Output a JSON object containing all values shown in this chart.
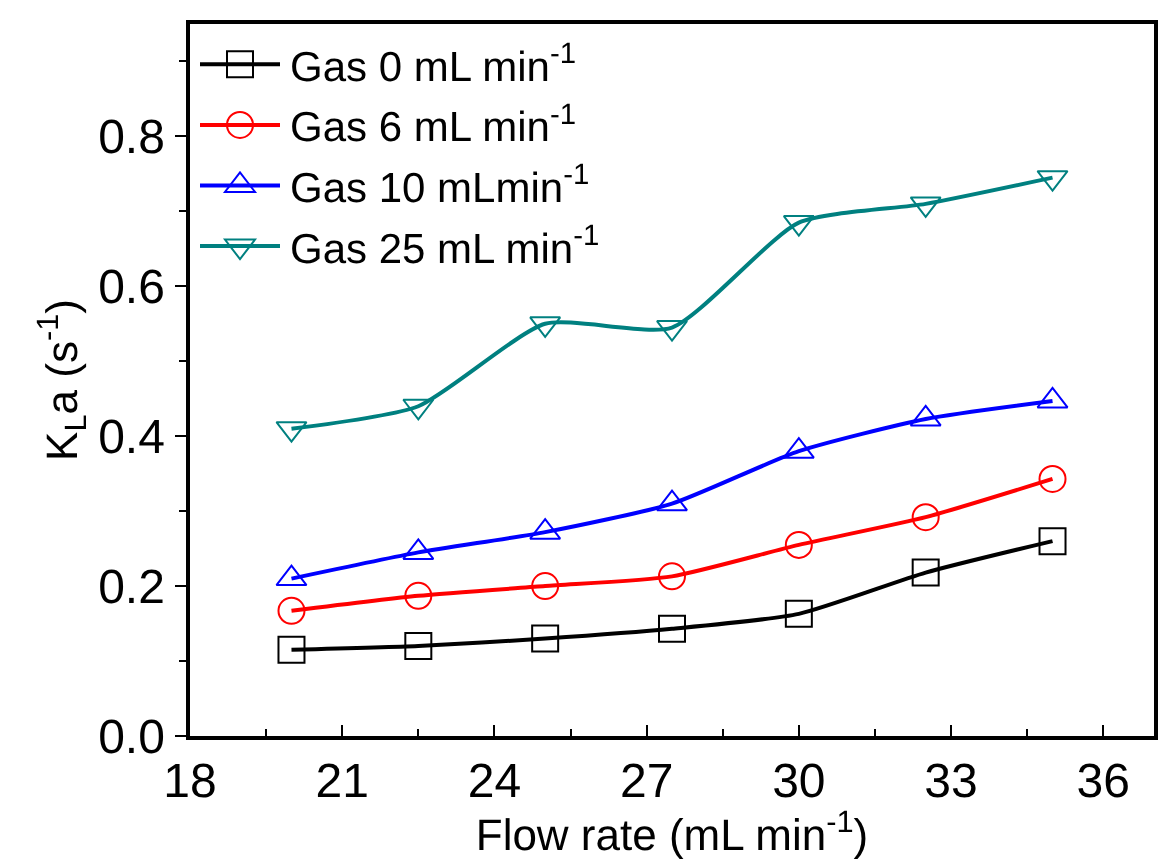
{
  "chart_data": {
    "type": "line",
    "xlabel": "Flow rate (mL min$^{-1}$)",
    "ylabel": "K$_{L}$a (s$^{-1}$)",
    "x": [
      20,
      22.5,
      25,
      27.5,
      30,
      32.5,
      35
    ],
    "xlim": [
      18,
      37
    ],
    "xticks": [
      18,
      21,
      24,
      27,
      30,
      33,
      36
    ],
    "ylim": [
      0,
      0.95
    ],
    "yticks": [
      {
        "value": 0.0,
        "label": "0.0"
      },
      0.2,
      0.4,
      0.6,
      0.8
    ],
    "legend": "top left",
    "line_style": "solid",
    "series": [
      {
        "name": "Gas 0 mL min$^{-1}$",
        "color": "#000000",
        "marker": "square",
        "values": [
          0.115,
          0.12,
          0.13,
          0.143,
          0.163,
          0.218,
          0.26
        ]
      },
      {
        "name": "Gas 6 mL min$^{-1}$",
        "color": "#ff0000",
        "marker": "circle",
        "values": [
          0.167,
          0.187,
          0.2,
          0.213,
          0.255,
          0.292,
          0.343
        ]
      },
      {
        "name": "Gas 10 mLmin$^{-1}$",
        "color": "#0000ff",
        "marker": "triangle",
        "values": [
          0.21,
          0.245,
          0.272,
          0.31,
          0.38,
          0.423,
          0.447
        ]
      },
      {
        "name": "Gas 25 mL min$^{-1}$",
        "color": "#008080",
        "marker": "triangle-down",
        "values": [
          0.41,
          0.44,
          0.55,
          0.545,
          0.685,
          0.71,
          0.745
        ]
      }
    ]
  }
}
